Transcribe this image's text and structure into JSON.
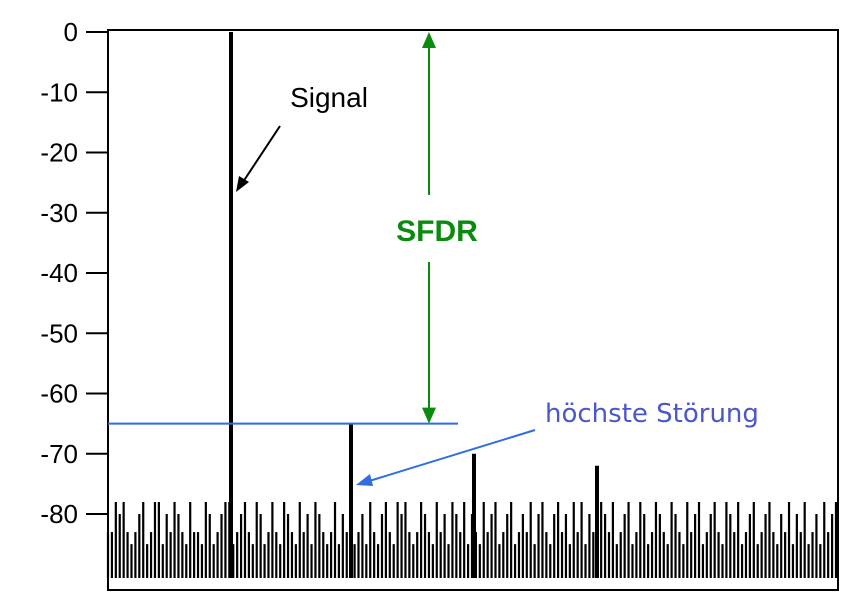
{
  "chart_data": {
    "type": "bar",
    "title": "",
    "xlabel": "",
    "ylabel": "",
    "ylim": [
      -90,
      0
    ],
    "yticks": [
      0,
      -10,
      -20,
      -30,
      -40,
      -50,
      -60,
      -70,
      -80
    ],
    "grid": false,
    "signal": {
      "label": "Signal",
      "value": 0
    },
    "highest_spur": {
      "label": "höchste Störung",
      "value": -65
    },
    "second_spur": {
      "value": -70
    },
    "third_spur": {
      "value": -72
    },
    "sfdr": {
      "label": "SFDR",
      "top": 0,
      "bottom": -65
    },
    "noise_floor_values": [
      -83,
      -83,
      -78,
      -80,
      -78,
      -83,
      -85,
      -83,
      -80,
      -78,
      -85,
      -83,
      -78,
      -78,
      -85,
      -80,
      -83,
      -78,
      -80,
      -83,
      -85,
      -78,
      -83,
      -83,
      -85,
      -78,
      -80,
      -85,
      -83,
      -80,
      -78,
      -78,
      -85,
      -83,
      -80,
      -78,
      -83,
      -85,
      -78,
      -80,
      -85,
      -83,
      -78,
      -83,
      -85,
      -78,
      -80,
      -83,
      -85,
      -78,
      -83,
      -80,
      -85,
      -78,
      -80,
      -83,
      -85,
      -83,
      -78,
      -85,
      -80,
      -83,
      -78,
      -85,
      -83,
      -80,
      -85,
      -78,
      -83,
      -85,
      -80,
      -78,
      -83,
      -85,
      -78,
      -80,
      -78,
      -83,
      -85,
      -83,
      -78,
      -80,
      -83,
      -85,
      -78,
      -83,
      -80,
      -85,
      -78,
      -80,
      -83,
      -78,
      -85,
      -80,
      -83,
      -85,
      -78,
      -83,
      -80,
      -78,
      -85,
      -83,
      -80,
      -78,
      -85,
      -83,
      -80,
      -83,
      -78,
      -85,
      -80,
      -78,
      -83,
      -85,
      -80,
      -78,
      -83,
      -80,
      -85,
      -78,
      -83,
      -78,
      -85,
      -80,
      -83,
      -85,
      -78,
      -80,
      -83,
      -78,
      -85,
      -83,
      -80,
      -78,
      -85,
      -83,
      -78,
      -80,
      -85,
      -83,
      -78,
      -80,
      -83,
      -85,
      -78,
      -80,
      -83,
      -85,
      -78,
      -83,
      -80,
      -78,
      -85,
      -83,
      -80,
      -78,
      -83,
      -85,
      -78,
      -80,
      -83,
      -78,
      -85,
      -83,
      -80,
      -78,
      -85,
      -83,
      -80,
      -78,
      -83,
      -85,
      -80,
      -83,
      -78,
      -85,
      -80,
      -83,
      -78,
      -85,
      -83,
      -80,
      -85,
      -78,
      -83,
      -80,
      -78
    ]
  },
  "colors": {
    "sfdr": "#0b8a10",
    "spur_line": "#2f6ee0",
    "spur_text": "#4b57c9",
    "ink": "#000000"
  }
}
